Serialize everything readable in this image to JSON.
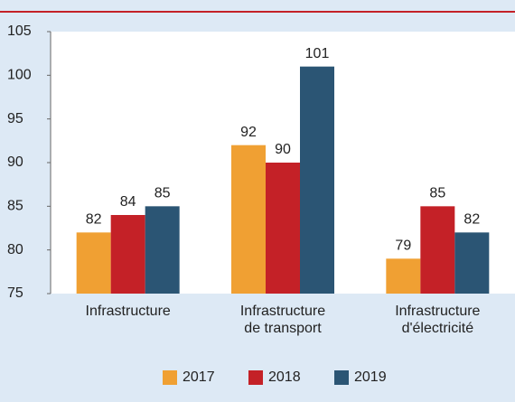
{
  "chart_data": {
    "type": "bar",
    "categories": [
      "Infrastructure",
      "Infrastructure\nde transport",
      "Infrastructure\nd'électricité"
    ],
    "series": [
      {
        "name": "2017",
        "color": "#f0a033",
        "values": [
          82,
          92,
          79
        ]
      },
      {
        "name": "2018",
        "color": "#c42127",
        "values": [
          84,
          90,
          85
        ]
      },
      {
        "name": "2019",
        "color": "#2b5574",
        "values": [
          85,
          101,
          82
        ]
      }
    ],
    "ylim": [
      75,
      105
    ],
    "yticks": [
      75,
      80,
      85,
      90,
      95,
      100,
      105
    ],
    "grid": false,
    "legend": "bottom"
  }
}
